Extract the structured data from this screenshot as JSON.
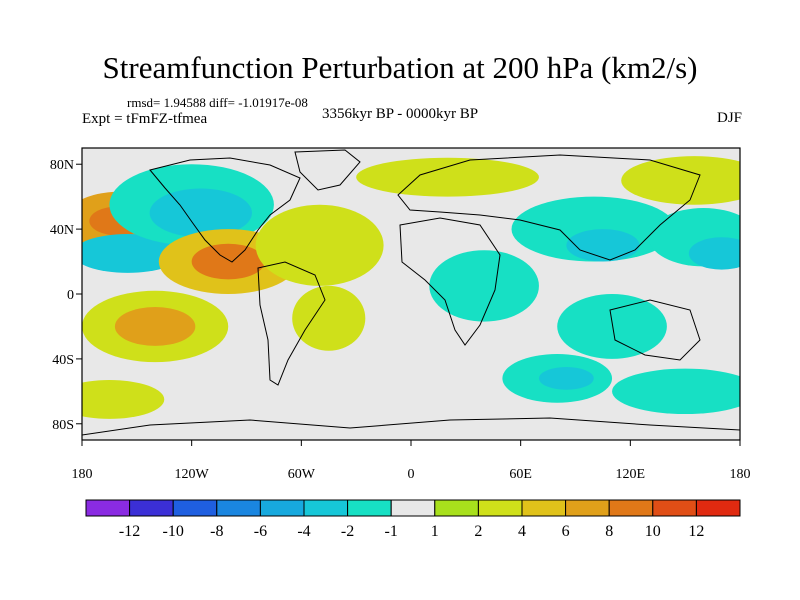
{
  "title": "Streamfunction Perturbation at 200 hPa (km2/s)",
  "stats_line": "rmsd= 1.94588 diff= -1.01917e-08",
  "experiment": "Expt = tFmFZ-tfmea",
  "period": "3356kyr BP - 0000kyr BP",
  "season": "DJF",
  "axes": {
    "lon_ticks": [
      "180",
      "120W",
      "60W",
      "0",
      "60E",
      "120E",
      "180"
    ],
    "lat_ticks": [
      "80N",
      "40N",
      "0",
      "40S",
      "80S"
    ]
  },
  "colorbar": {
    "labels": [
      "-12",
      "-10",
      "-8",
      "-6",
      "-4",
      "-2",
      "-1",
      "1",
      "2",
      "4",
      "6",
      "8",
      "10",
      "12"
    ],
    "colors": [
      "#8a2be2",
      "#3b2fd6",
      "#1f5fe0",
      "#1a86e0",
      "#17a9de",
      "#16c7d8",
      "#17e0c4",
      "#e8e8e8",
      "#a8e01c",
      "#cfe01a",
      "#e0c21a",
      "#e0a01a",
      "#e07818",
      "#e04e16",
      "#e02a10"
    ]
  },
  "map": {
    "background_color": "#e8e8e8",
    "fields": [
      {
        "cx": -160,
        "cy": 45,
        "rx": 30,
        "ry": 18,
        "level": 6
      },
      {
        "cx": -160,
        "cy": 45,
        "rx": 16,
        "ry": 9,
        "level": 8
      },
      {
        "cx": -155,
        "cy": 25,
        "rx": 30,
        "ry": 12,
        "level": -4
      },
      {
        "cx": -120,
        "cy": 55,
        "rx": 45,
        "ry": 25,
        "level": -2
      },
      {
        "cx": -115,
        "cy": 50,
        "rx": 28,
        "ry": 15,
        "level": -4
      },
      {
        "cx": -100,
        "cy": 20,
        "rx": 38,
        "ry": 20,
        "level": 4
      },
      {
        "cx": -100,
        "cy": 20,
        "rx": 20,
        "ry": 11,
        "level": 8
      },
      {
        "cx": -140,
        "cy": -20,
        "rx": 40,
        "ry": 22,
        "level": 2
      },
      {
        "cx": -140,
        "cy": -20,
        "rx": 22,
        "ry": 12,
        "level": 6
      },
      {
        "cx": -45,
        "cy": -15,
        "rx": 20,
        "ry": 20,
        "level": 2
      },
      {
        "cx": -50,
        "cy": 30,
        "rx": 35,
        "ry": 25,
        "level": 2
      },
      {
        "cx": 20,
        "cy": 72,
        "rx": 50,
        "ry": 12,
        "level": 2
      },
      {
        "cx": 155,
        "cy": 70,
        "rx": 40,
        "ry": 15,
        "level": 2
      },
      {
        "cx": 40,
        "cy": 5,
        "rx": 30,
        "ry": 22,
        "level": -2
      },
      {
        "cx": 100,
        "cy": 40,
        "rx": 45,
        "ry": 20,
        "level": -2
      },
      {
        "cx": 105,
        "cy": 30,
        "rx": 20,
        "ry": 10,
        "level": -4
      },
      {
        "cx": 160,
        "cy": 35,
        "rx": 30,
        "ry": 18,
        "level": -2
      },
      {
        "cx": 170,
        "cy": 25,
        "rx": 18,
        "ry": 10,
        "level": -4
      },
      {
        "cx": 110,
        "cy": -20,
        "rx": 30,
        "ry": 20,
        "level": -2
      },
      {
        "cx": 80,
        "cy": -52,
        "rx": 30,
        "ry": 15,
        "level": -2
      },
      {
        "cx": 85,
        "cy": -52,
        "rx": 15,
        "ry": 7,
        "level": -4
      },
      {
        "cx": 150,
        "cy": -60,
        "rx": 40,
        "ry": 14,
        "level": -2
      },
      {
        "cx": -165,
        "cy": -65,
        "rx": 30,
        "ry": 12,
        "level": 2
      }
    ]
  }
}
